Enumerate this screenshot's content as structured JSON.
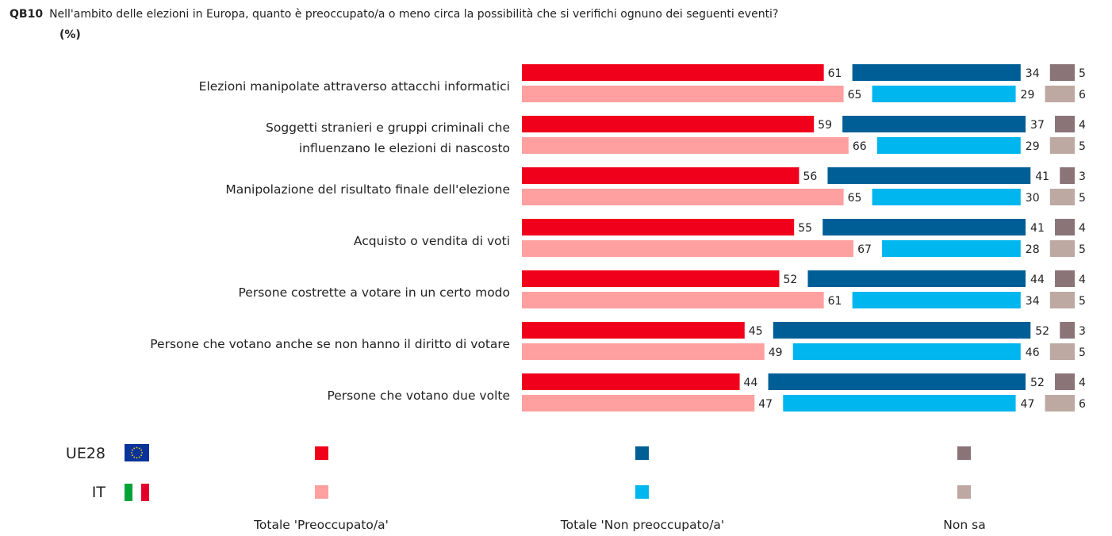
{
  "question": {
    "code": "QB10",
    "text": "Nell'ambito delle elezioni in Europa, quanto è preoccupato/a o meno circa la possibilità che si verifichi ognuno dei seguenti eventi?",
    "unit": "(%)"
  },
  "colors": {
    "ue_preoccupato": "#f0001a",
    "ue_non_preoccupato": "#005e96",
    "ue_non_sa": "#8a7478",
    "it_preoccupato": "#ffa0a0",
    "it_non_preoccupato": "#00b6ee",
    "it_non_sa": "#bda9a2"
  },
  "legend": {
    "countries": [
      {
        "label": "UE28",
        "flag": "eu-flag-icon"
      },
      {
        "label": "IT",
        "flag": "italy-flag-icon"
      }
    ],
    "categories": [
      "Totale 'Preoccupato/a'",
      "Totale 'Non preoccupato/a'",
      "Non sa"
    ]
  },
  "chart_data": {
    "type": "bar",
    "orientation": "horizontal-stacked",
    "categories": [
      [
        "Elezioni manipolate attraverso attacchi informatici"
      ],
      [
        "Soggetti stranieri e gruppi criminali che",
        "influenzano le elezioni di nascosto"
      ],
      [
        "Manipolazione del risultato finale dell'elezione"
      ],
      [
        "Acquisto o vendita di voti"
      ],
      [
        "Persone costrette a votare in un certo modo"
      ],
      [
        "Persone che votano anche se non hanno il diritto di votare"
      ],
      [
        "Persone che votano due volte"
      ]
    ],
    "series": [
      {
        "group": "UE28",
        "preoccupato": [
          61,
          59,
          56,
          55,
          52,
          45,
          44
        ],
        "non_preoccupato": [
          34,
          37,
          41,
          41,
          44,
          52,
          52
        ],
        "non_sa": [
          5,
          4,
          3,
          4,
          4,
          3,
          4
        ]
      },
      {
        "group": "IT",
        "preoccupato": [
          65,
          66,
          65,
          67,
          61,
          49,
          47
        ],
        "non_preoccupato": [
          29,
          29,
          30,
          28,
          34,
          46,
          47
        ],
        "non_sa": [
          6,
          5,
          5,
          5,
          5,
          5,
          6
        ]
      }
    ],
    "xlim": [
      0,
      100
    ]
  }
}
